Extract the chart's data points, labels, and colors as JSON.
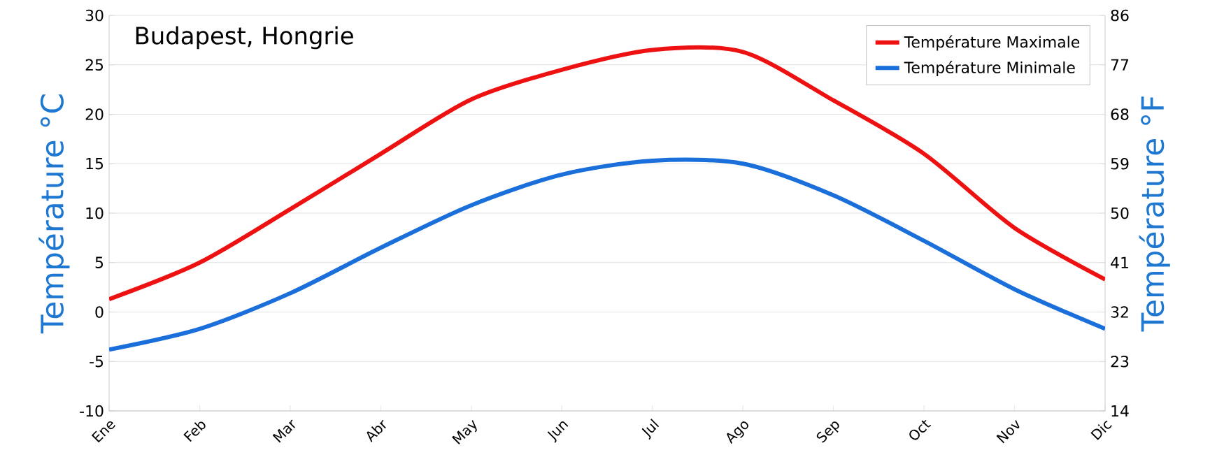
{
  "chart_data": {
    "type": "line",
    "title": "Budapest, Hongrie",
    "ylabel": "Température °C",
    "y2label": "Température °F",
    "categories": [
      "Ene",
      "Feb",
      "Mar",
      "Abr",
      "May",
      "Jun",
      "Jul",
      "Ago",
      "Sep",
      "Oct",
      "Nov",
      "Dic"
    ],
    "series": [
      {
        "name": "Température Maximale",
        "color": "#ee1111",
        "values": [
          1.3,
          5,
          10.4,
          16,
          21.5,
          24.5,
          26.5,
          26.3,
          21.4,
          16,
          8.5,
          3.3
        ]
      },
      {
        "name": "Température Minimale",
        "color": "#1a6fdb",
        "values": [
          -3.8,
          -1.7,
          1.9,
          6.5,
          10.8,
          13.9,
          15.3,
          15,
          11.8,
          7.2,
          2.3,
          -1.7
        ]
      }
    ],
    "ylim": [
      -10,
      30
    ],
    "yticks": [
      -10,
      -5,
      0,
      5,
      10,
      15,
      20,
      25,
      30
    ],
    "y2lim": [
      14,
      86
    ],
    "y2ticks": [
      14,
      23,
      32,
      41,
      50,
      59,
      68,
      77,
      86
    ],
    "grid": "y",
    "legend": "top right",
    "marker": "none",
    "line_style": "solid"
  }
}
